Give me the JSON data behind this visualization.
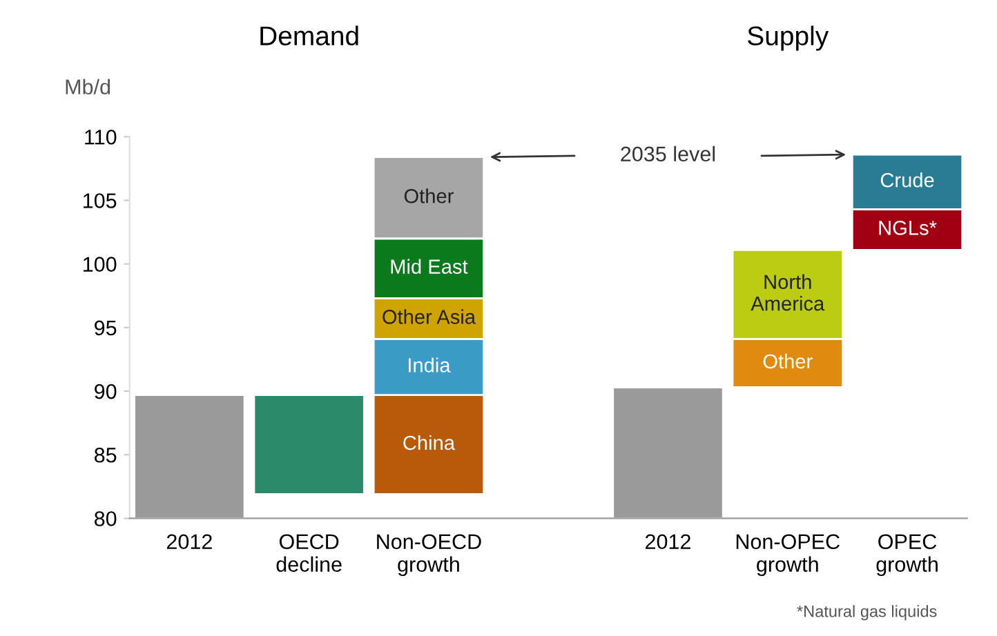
{
  "chart_data": {
    "type": "bar",
    "categories": [
      "2012",
      "OECD\ndecline",
      "Non-OECD\ngrowth",
      null,
      "2012",
      "Non-OPEC\ngrowth",
      "OPEC\ngrowth"
    ],
    "ylabel": "Mb/d",
    "ylim": [
      80,
      110
    ],
    "yticks": [
      80,
      85,
      90,
      95,
      100,
      105,
      110
    ],
    "grid": false,
    "legend": false,
    "annotations": [
      "Demand",
      "Supply",
      "2035 level",
      "*Natural gas liquids"
    ],
    "series": [
      {
        "color": "#9a9a9a",
        "values": [
          9.7,
          null,
          null,
          null,
          10.3,
          null,
          null
        ],
        "base": [
          80,
          null,
          null,
          null,
          80,
          null,
          null
        ]
      },
      {
        "color": "#2a8a6a",
        "values": [
          null,
          -7.8,
          null,
          null,
          null,
          null,
          null
        ],
        "base": [
          null,
          89.7,
          null,
          null,
          null,
          null,
          null
        ]
      },
      {
        "name": "China",
        "color": "#b85a0a",
        "values": [
          null,
          null,
          7.8,
          null,
          null,
          null,
          null
        ],
        "base": [
          null,
          null,
          81.9,
          null,
          null,
          null,
          null
        ]
      },
      {
        "name": "India",
        "color": "#3a9cc4",
        "values": [
          null,
          null,
          4.4,
          null,
          null,
          null,
          null
        ],
        "base": [
          null,
          null,
          89.7,
          null,
          null,
          null,
          null
        ]
      },
      {
        "name": "Other Asia",
        "color": "#d0a400",
        "values": [
          null,
          null,
          3.2,
          null,
          null,
          null,
          null
        ],
        "base": [
          null,
          null,
          94.1,
          null,
          null,
          null,
          null
        ]
      },
      {
        "name": "Mid East",
        "color": "#0b7a1c",
        "values": [
          null,
          null,
          4.7,
          null,
          null,
          null,
          null
        ],
        "base": [
          null,
          null,
          97.3,
          null,
          null,
          null,
          null
        ]
      },
      {
        "name": "Other",
        "color": "#a6a6a6",
        "values": [
          null,
          null,
          6.4,
          null,
          null,
          null,
          null
        ],
        "base": [
          null,
          null,
          102.0,
          null,
          null,
          null,
          null
        ]
      },
      {
        "name": "Other",
        "color": "#e08a10",
        "values": [
          null,
          null,
          null,
          null,
          null,
          3.8,
          null
        ],
        "base": [
          null,
          null,
          null,
          null,
          null,
          90.3,
          null
        ]
      },
      {
        "name": "North\nAmerica",
        "color": "#bccc12",
        "values": [
          null,
          null,
          null,
          null,
          null,
          7.0,
          null
        ],
        "base": [
          null,
          null,
          null,
          null,
          null,
          94.1,
          null
        ]
      },
      {
        "name": "NGLs*",
        "color": "#a00012",
        "values": [
          null,
          null,
          null,
          null,
          null,
          null,
          3.2
        ],
        "base": [
          null,
          null,
          null,
          null,
          null,
          null,
          101.1
        ]
      },
      {
        "name": "Crude",
        "color": "#2a7c94",
        "values": [
          null,
          null,
          null,
          null,
          null,
          null,
          4.3
        ],
        "base": [
          null,
          null,
          null,
          null,
          null,
          null,
          104.3
        ]
      }
    ]
  }
}
